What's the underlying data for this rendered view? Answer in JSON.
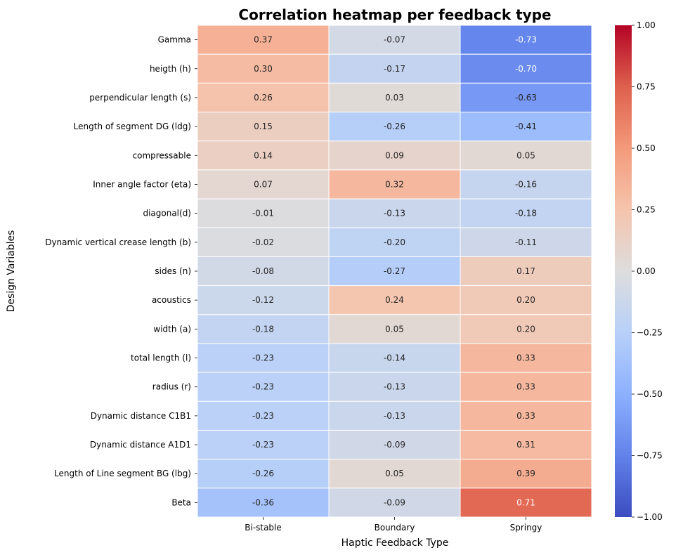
{
  "chart_data": {
    "type": "heatmap",
    "title": "Correlation heatmap per feedback type",
    "xlabel": "Haptic Feedback Type",
    "ylabel": "Design Variables",
    "columns": [
      "Bi-stable",
      "Boundary",
      "Springy"
    ],
    "rows": [
      "Gamma",
      "heigth (h)",
      "perpendicular length (s)",
      "Length of segment DG (ldg)",
      "compressable",
      "Inner angle factor (eta)",
      "diagonal(d)",
      "Dynamic vertical crease length (b)",
      "sides (n)",
      "acoustics",
      "width (a)",
      "total length (l)",
      "radius (r)",
      "Dynamic distance C1B1",
      "Dynamic distance A1D1",
      "Length of Line segment BG (lbg)",
      "Beta"
    ],
    "values": [
      [
        0.37,
        -0.07,
        -0.73
      ],
      [
        0.3,
        -0.17,
        -0.7
      ],
      [
        0.26,
        0.03,
        -0.63
      ],
      [
        0.15,
        -0.26,
        -0.41
      ],
      [
        0.14,
        0.09,
        0.05
      ],
      [
        0.07,
        0.32,
        -0.16
      ],
      [
        -0.01,
        -0.13,
        -0.18
      ],
      [
        -0.02,
        -0.2,
        -0.11
      ],
      [
        -0.08,
        -0.27,
        0.17
      ],
      [
        -0.12,
        0.24,
        0.2
      ],
      [
        -0.18,
        0.05,
        0.2
      ],
      [
        -0.23,
        -0.14,
        0.33
      ],
      [
        -0.23,
        -0.13,
        0.33
      ],
      [
        -0.23,
        -0.13,
        0.33
      ],
      [
        -0.23,
        -0.09,
        0.31
      ],
      [
        -0.26,
        0.05,
        0.39
      ],
      [
        -0.36,
        -0.09,
        0.71
      ]
    ],
    "colormap": "coolwarm",
    "vmin": -1.0,
    "vmax": 1.0,
    "colorbar_ticks": [
      "1.00",
      "0.75",
      "0.50",
      "0.25",
      "0.00",
      "−0.25",
      "−0.50",
      "−0.75",
      "−1.00"
    ],
    "colorbar_tick_values": [
      1.0,
      0.75,
      0.5,
      0.25,
      0.0,
      -0.25,
      -0.5,
      -0.75,
      -1.0
    ]
  }
}
